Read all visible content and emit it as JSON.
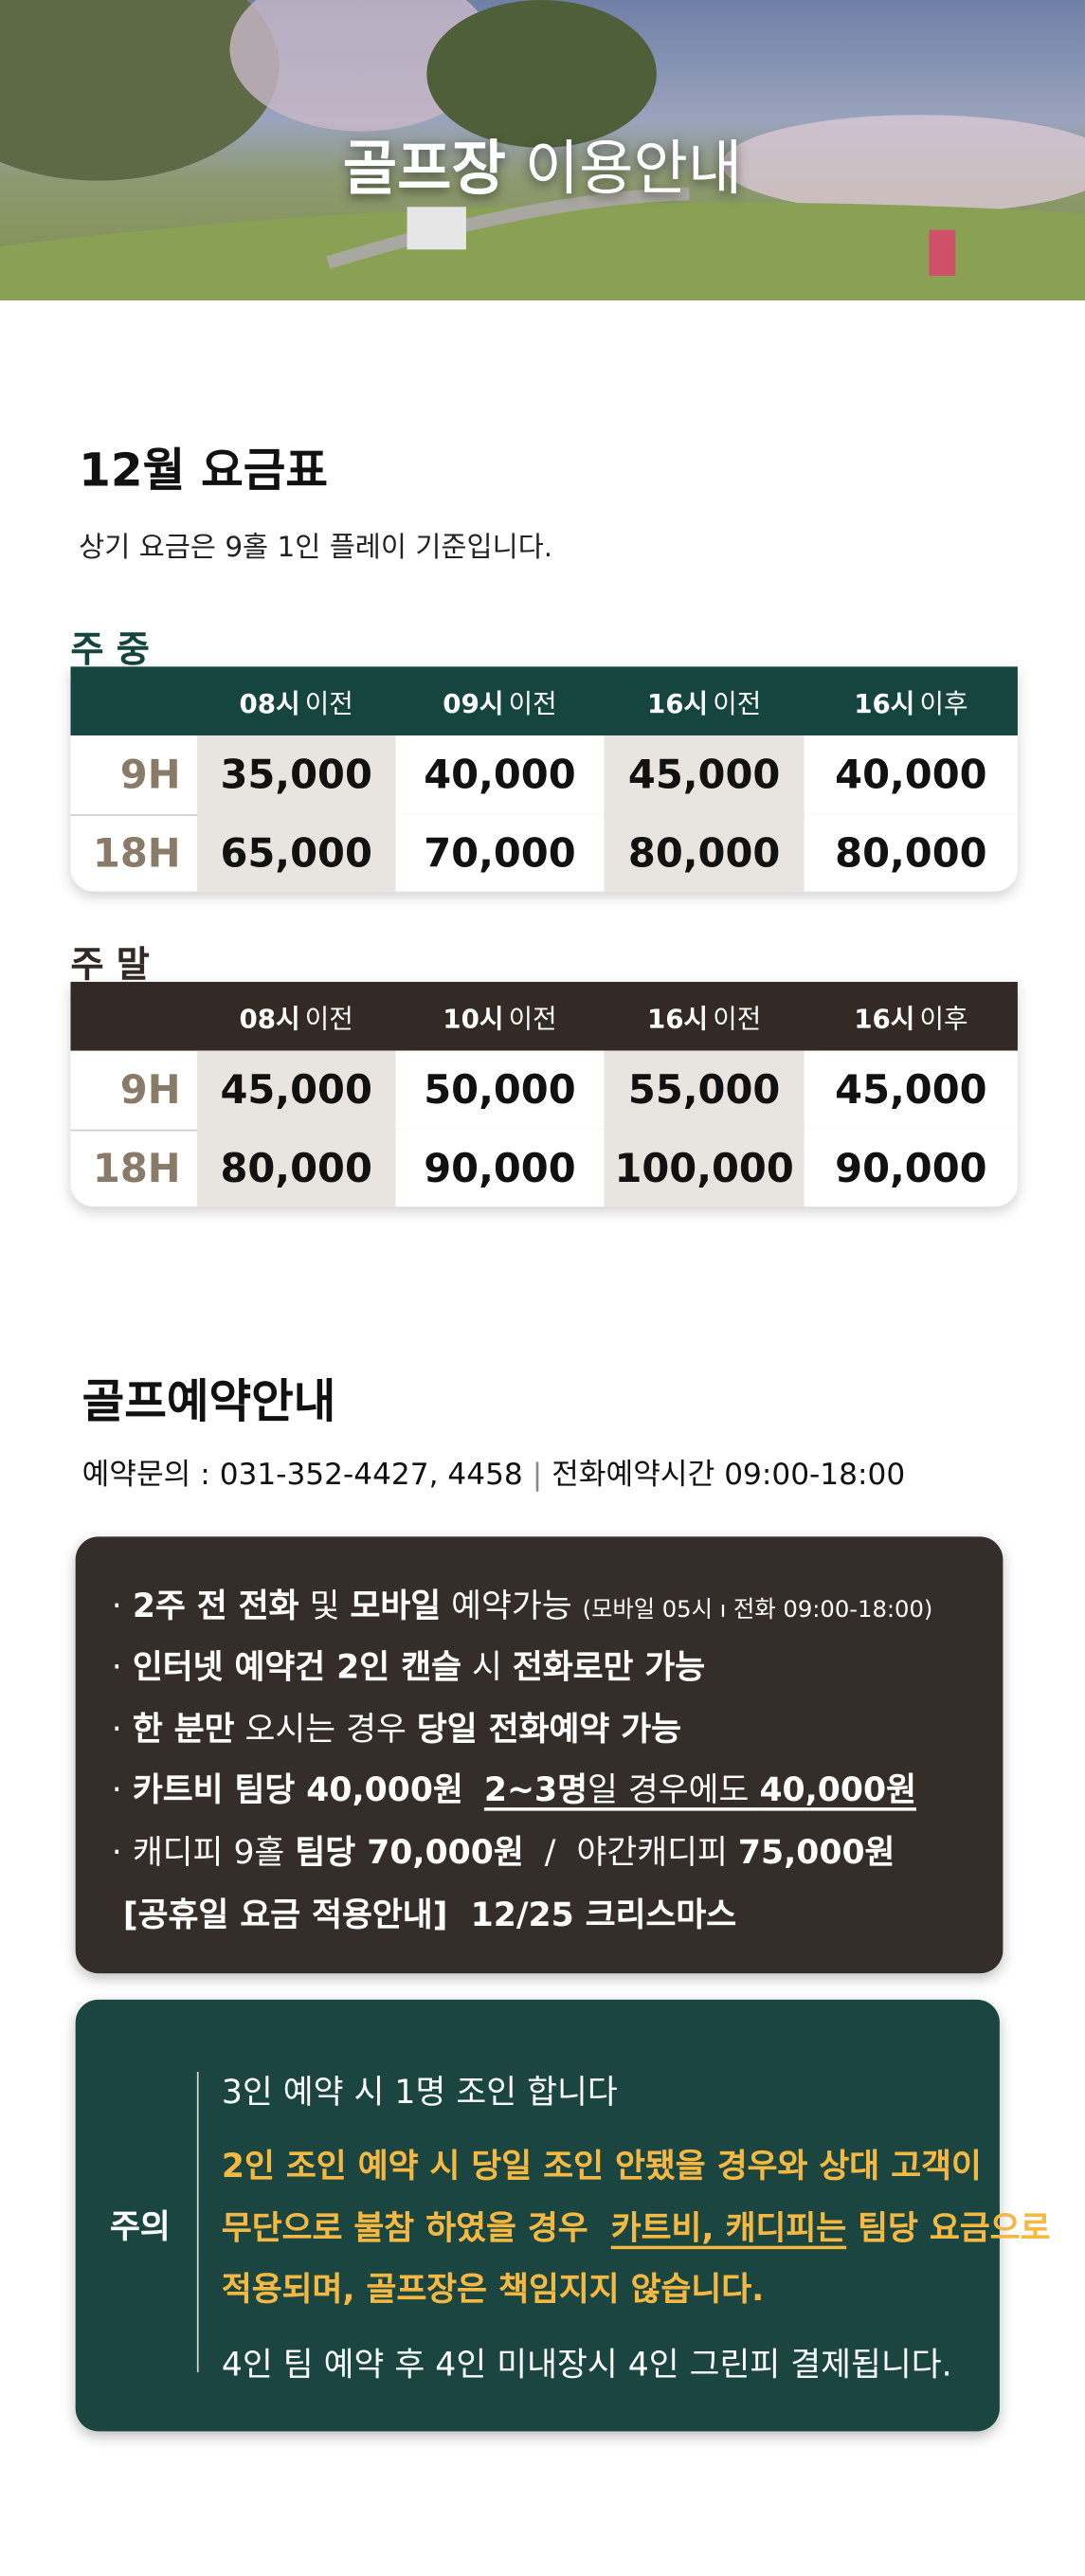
{
  "hero": {
    "title_bold": "골프장",
    "title_light": "이용안내"
  },
  "rates": {
    "title": "12월 요금표",
    "note": "상기 요금은 9홀 1인 플레이 기준입니다.",
    "tables": [
      {
        "label": "주 중",
        "color": "#15453e",
        "headers": [
          {
            "time": "08시",
            "when": "이전"
          },
          {
            "time": "09시",
            "when": "이전"
          },
          {
            "time": "16시",
            "when": "이전"
          },
          {
            "time": "16시",
            "when": "이후"
          }
        ],
        "rows": [
          {
            "hole": "9H",
            "prices": [
              "35,000",
              "40,000",
              "45,000",
              "40,000"
            ]
          },
          {
            "hole": "18H",
            "prices": [
              "65,000",
              "70,000",
              "80,000",
              "80,000"
            ]
          }
        ]
      },
      {
        "label": "주 말",
        "color": "#332a26",
        "headers": [
          {
            "time": "08시",
            "when": "이전"
          },
          {
            "time": "10시",
            "when": "이전"
          },
          {
            "time": "16시",
            "when": "이전"
          },
          {
            "time": "16시",
            "when": "이후"
          }
        ],
        "rows": [
          {
            "hole": "9H",
            "prices": [
              "45,000",
              "50,000",
              "55,000",
              "45,000"
            ]
          },
          {
            "hole": "18H",
            "prices": [
              "80,000",
              "90,000",
              "100,000",
              "90,000"
            ]
          }
        ]
      }
    ]
  },
  "booking": {
    "title": "골프예약안내",
    "contact_label": "예약문의 :",
    "contact_numbers": "031-352-4427, 4458",
    "hours_label": "전화예약시간",
    "hours": "09:00-18:00",
    "notes": [
      [
        {
          "text": "· "
        },
        {
          "text": "2주 전 전화",
          "bold": true
        },
        {
          "text": " 및 "
        },
        {
          "text": "모바일",
          "bold": true
        },
        {
          "text": " 예약가능 "
        },
        {
          "text": "(모바일 05시 ı 전화 09:00-18:00)",
          "small": true
        }
      ],
      [
        {
          "text": "· "
        },
        {
          "text": "인터넷 예약건 2인 캔슬",
          "bold": true
        },
        {
          "text": " 시 "
        },
        {
          "text": "전화로만 가능",
          "bold": true
        }
      ],
      [
        {
          "text": "· "
        },
        {
          "text": "한 분만",
          "bold": true
        },
        {
          "text": " 오시는 경우 "
        },
        {
          "text": "당일 전화예약 가능",
          "bold": true
        }
      ],
      [
        {
          "text": "· "
        },
        {
          "text": "카트비 팀당 40,000원",
          "bold": true
        },
        {
          "text": "  "
        },
        {
          "text": "2~3명",
          "bold": true,
          "underline": true
        },
        {
          "text": "일 경우에도 ",
          "underline": true
        },
        {
          "text": "40,000원",
          "bold": true,
          "underline": true
        }
      ],
      [
        {
          "text": "· 캐디피 9홀 "
        },
        {
          "text": "팀당 70,000원",
          "bold": true
        },
        {
          "text": "  /  야간캐디피 "
        },
        {
          "text": "75,000원",
          "bold": true
        }
      ],
      [
        {
          "text": " [공휴일 요금 적용안내]  12/25 크리스마스",
          "bold": true
        }
      ]
    ]
  },
  "caution": {
    "label": "주의",
    "lines": [
      [
        {
          "text": "3인 예약 시 1명 조인 합니다"
        }
      ],
      [
        {
          "text": "2인 조인 예약 시 당일 조인 안됐을 경우와 상대 고객이",
          "bold": true,
          "highlight": true
        }
      ],
      [
        {
          "text": "무단으로 불참 하였을 경우  ",
          "bold": true,
          "highlight": true
        },
        {
          "text": "카트비, 캐디피는",
          "bold": true,
          "highlight": true,
          "underline": true
        },
        {
          "text": " 팀당 요금으로",
          "bold": true,
          "highlight": true
        }
      ],
      [
        {
          "text": "적용되며, 골프장은 책임지지 않습니다.",
          "bold": true,
          "highlight": true
        }
      ],
      [
        {
          "text": "4인 팀 예약 후 4인 미내장시 4인 그린피 결제됩니다."
        }
      ]
    ]
  }
}
